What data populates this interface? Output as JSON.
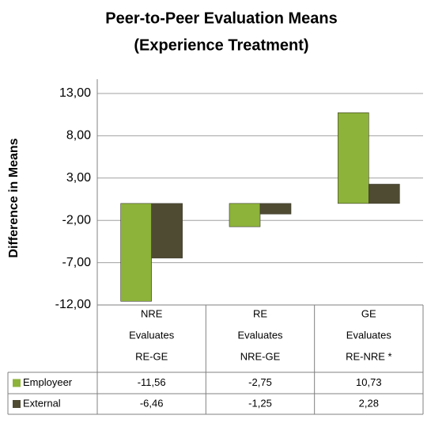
{
  "chart_data": {
    "type": "bar",
    "title": [
      "Peer-to-Peer Evaluation Means",
      "(Experience Treatment)"
    ],
    "y_label": "Difference in Means",
    "categories": [
      [
        "NRE",
        "Evaluates",
        "RE-GE"
      ],
      [
        "RE",
        "Evaluates",
        "NRE-GE"
      ],
      [
        "GE",
        "Evaluates",
        "RE-NRE *"
      ]
    ],
    "series": [
      {
        "name": "Employeer",
        "color": "#8db33a",
        "values": [
          -11.56,
          -2.75,
          10.73
        ],
        "value_labels": [
          "-11,56",
          "-2,75",
          "10,73"
        ]
      },
      {
        "name": "External",
        "color": "#4f4b33",
        "values": [
          -6.46,
          -1.25,
          2.28
        ],
        "value_labels": [
          "-6,46",
          "-1,25",
          "2,28"
        ]
      }
    ],
    "ylim": [
      -12,
      13
    ],
    "yticks": [
      {
        "value": 13,
        "label": "13,00"
      },
      {
        "value": 8,
        "label": "8,00"
      },
      {
        "value": 3,
        "label": "3,00"
      },
      {
        "value": -2,
        "label": "-2,00"
      },
      {
        "value": -7,
        "label": "-7,00"
      },
      {
        "value": -12,
        "label": "-12,00"
      }
    ],
    "grid": true
  }
}
